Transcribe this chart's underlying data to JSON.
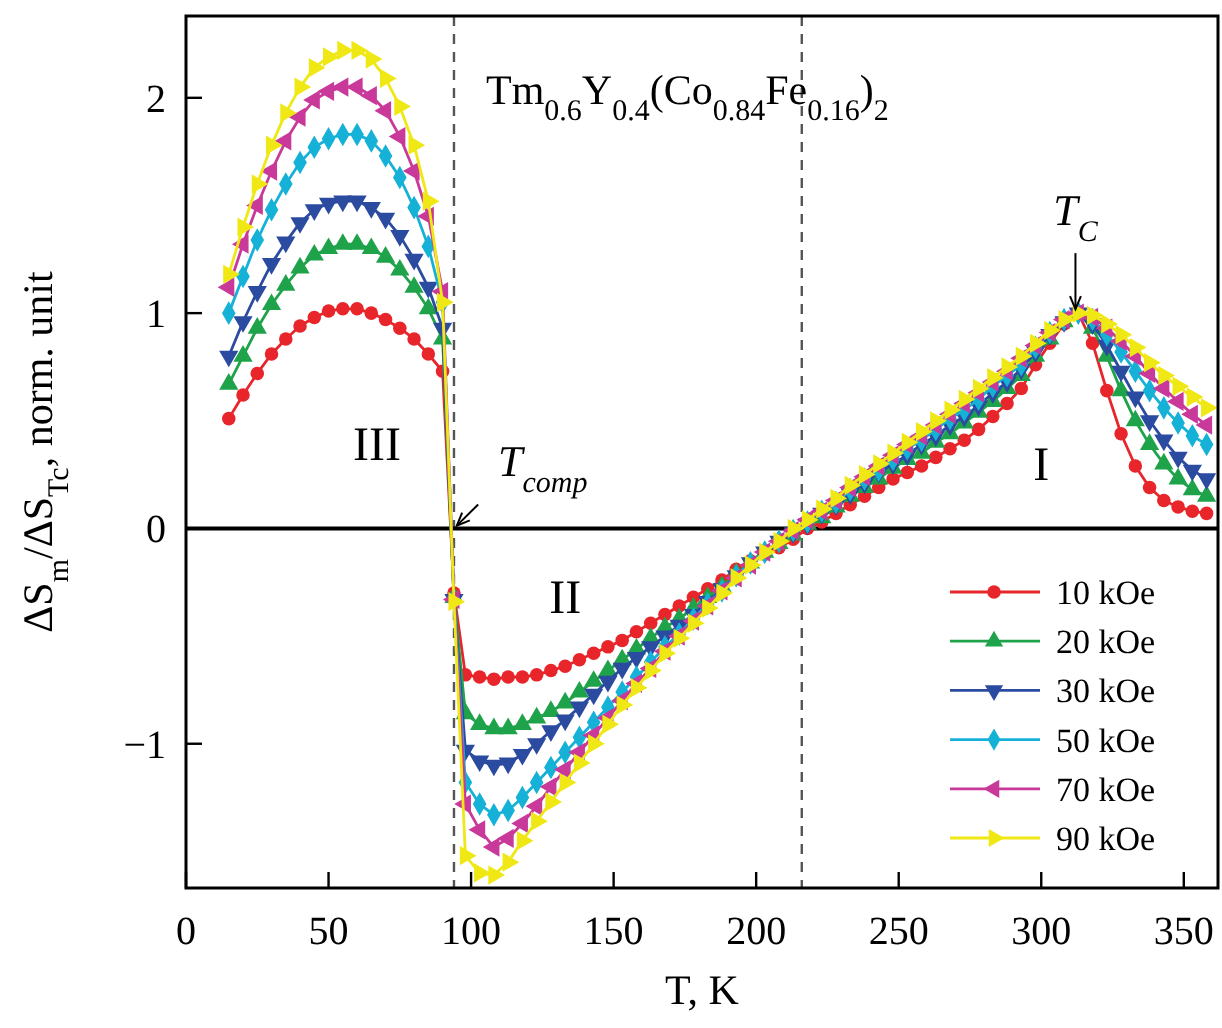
{
  "chart_data": {
    "type": "line",
    "title": "Tm$_{0.6}$Y$_{0.4}$(Co$_{0.84}$Fe$_{0.16}$)$_{2}$",
    "xlabel": "T, K",
    "ylabel": "ΔS$_{m}$/ΔS$_{Tc}$, norm. unit",
    "x": [
      15,
      20,
      25,
      30,
      35,
      40,
      45,
      50,
      55,
      60,
      65,
      70,
      75,
      80,
      85,
      90,
      94,
      98,
      103,
      108,
      113,
      118,
      123,
      128,
      133,
      138,
      143,
      148,
      153,
      158,
      163,
      168,
      173,
      178,
      183,
      188,
      193,
      198,
      203,
      208,
      213,
      218,
      223,
      228,
      233,
      238,
      243,
      248,
      253,
      258,
      263,
      268,
      273,
      278,
      283,
      288,
      293,
      298,
      303,
      308,
      313,
      318,
      323,
      328,
      333,
      338,
      343,
      348,
      353,
      358
    ],
    "xlim": [
      0,
      362
    ],
    "xticks": [
      0,
      50,
      100,
      150,
      200,
      250,
      300,
      350
    ],
    "ylim": [
      -1.67,
      2.38
    ],
    "yticks": [
      -1,
      0,
      1,
      2
    ],
    "series": [
      {
        "name": "10 kOe",
        "color": "#e8252a",
        "marker": "circle",
        "values": [
          0.51,
          0.62,
          0.72,
          0.81,
          0.88,
          0.94,
          0.98,
          1.01,
          1.02,
          1.02,
          1.0,
          0.97,
          0.93,
          0.88,
          0.81,
          0.73,
          -0.3,
          -0.68,
          -0.69,
          -0.7,
          -0.69,
          -0.69,
          -0.68,
          -0.66,
          -0.64,
          -0.61,
          -0.58,
          -0.55,
          -0.52,
          -0.48,
          -0.44,
          -0.4,
          -0.36,
          -0.32,
          -0.28,
          -0.24,
          -0.19,
          -0.15,
          -0.12,
          -0.09,
          -0.05,
          0.0,
          0.03,
          0.07,
          0.11,
          0.15,
          0.19,
          0.23,
          0.26,
          0.29,
          0.33,
          0.37,
          0.41,
          0.46,
          0.52,
          0.58,
          0.65,
          0.76,
          0.86,
          0.95,
          1.0,
          0.86,
          0.64,
          0.44,
          0.29,
          0.19,
          0.13,
          0.1,
          0.08,
          0.07
        ]
      },
      {
        "name": "20 kOe",
        "color": "#1fa34a",
        "marker": "triangle",
        "values": [
          0.67,
          0.8,
          0.93,
          1.04,
          1.13,
          1.21,
          1.27,
          1.3,
          1.32,
          1.32,
          1.3,
          1.26,
          1.2,
          1.12,
          1.02,
          0.88,
          -0.32,
          -0.86,
          -0.91,
          -0.93,
          -0.93,
          -0.91,
          -0.88,
          -0.85,
          -0.81,
          -0.76,
          -0.71,
          -0.66,
          -0.61,
          -0.56,
          -0.51,
          -0.46,
          -0.42,
          -0.37,
          -0.32,
          -0.27,
          -0.21,
          -0.16,
          -0.11,
          -0.07,
          -0.03,
          0.02,
          0.05,
          0.1,
          0.15,
          0.19,
          0.23,
          0.28,
          0.32,
          0.35,
          0.4,
          0.44,
          0.49,
          0.54,
          0.59,
          0.65,
          0.71,
          0.8,
          0.88,
          0.96,
          1.0,
          0.93,
          0.8,
          0.64,
          0.5,
          0.39,
          0.3,
          0.23,
          0.18,
          0.15
        ]
      },
      {
        "name": "30 kOe",
        "color": "#2b4ba0",
        "marker": "triangle",
        "values": [
          0.8,
          0.96,
          1.1,
          1.23,
          1.33,
          1.42,
          1.48,
          1.51,
          1.52,
          1.52,
          1.49,
          1.44,
          1.36,
          1.25,
          1.12,
          0.93,
          -0.33,
          -1.03,
          -1.08,
          -1.1,
          -1.09,
          -1.05,
          -1.0,
          -0.94,
          -0.89,
          -0.83,
          -0.77,
          -0.71,
          -0.65,
          -0.6,
          -0.55,
          -0.5,
          -0.45,
          -0.4,
          -0.34,
          -0.28,
          -0.22,
          -0.16,
          -0.11,
          -0.06,
          -0.02,
          0.02,
          0.07,
          0.11,
          0.16,
          0.21,
          0.26,
          0.3,
          0.34,
          0.39,
          0.43,
          0.48,
          0.52,
          0.57,
          0.63,
          0.68,
          0.74,
          0.82,
          0.9,
          0.96,
          1.0,
          0.95,
          0.85,
          0.73,
          0.61,
          0.5,
          0.41,
          0.33,
          0.27,
          0.23
        ]
      },
      {
        "name": "50 kOe",
        "color": "#16b1d6",
        "marker": "diamond",
        "values": [
          1.0,
          1.17,
          1.34,
          1.48,
          1.6,
          1.7,
          1.77,
          1.81,
          1.83,
          1.83,
          1.8,
          1.73,
          1.63,
          1.49,
          1.31,
          1.05,
          -0.33,
          -1.18,
          -1.28,
          -1.33,
          -1.31,
          -1.25,
          -1.18,
          -1.11,
          -1.04,
          -0.97,
          -0.9,
          -0.83,
          -0.76,
          -0.69,
          -0.62,
          -0.55,
          -0.49,
          -0.42,
          -0.35,
          -0.29,
          -0.22,
          -0.16,
          -0.11,
          -0.06,
          -0.01,
          0.03,
          0.08,
          0.12,
          0.18,
          0.23,
          0.27,
          0.32,
          0.37,
          0.41,
          0.46,
          0.51,
          0.55,
          0.6,
          0.66,
          0.71,
          0.76,
          0.84,
          0.91,
          0.97,
          1.0,
          0.97,
          0.9,
          0.82,
          0.73,
          0.64,
          0.56,
          0.49,
          0.43,
          0.39
        ]
      },
      {
        "name": "70 kOe",
        "color": "#c8399a",
        "marker": "triangle",
        "values": [
          1.12,
          1.32,
          1.5,
          1.66,
          1.8,
          1.91,
          1.99,
          2.03,
          2.05,
          2.05,
          2.01,
          1.94,
          1.82,
          1.66,
          1.45,
          1.1,
          -0.33,
          -1.28,
          -1.4,
          -1.48,
          -1.44,
          -1.37,
          -1.29,
          -1.2,
          -1.12,
          -1.04,
          -0.96,
          -0.88,
          -0.8,
          -0.72,
          -0.65,
          -0.57,
          -0.5,
          -0.43,
          -0.36,
          -0.29,
          -0.23,
          -0.17,
          -0.11,
          -0.06,
          -0.01,
          0.04,
          0.08,
          0.13,
          0.19,
          0.24,
          0.29,
          0.34,
          0.39,
          0.43,
          0.48,
          0.53,
          0.58,
          0.63,
          0.68,
          0.73,
          0.79,
          0.85,
          0.91,
          0.97,
          1.0,
          0.98,
          0.93,
          0.87,
          0.8,
          0.72,
          0.65,
          0.59,
          0.53,
          0.48
        ]
      },
      {
        "name": "90 kOe",
        "color": "#f0e814",
        "marker": "triangle",
        "values": [
          1.18,
          1.4,
          1.6,
          1.78,
          1.93,
          2.05,
          2.14,
          2.19,
          2.22,
          2.22,
          2.18,
          2.09,
          1.96,
          1.78,
          1.52,
          1.05,
          -0.34,
          -1.52,
          -1.6,
          -1.61,
          -1.55,
          -1.45,
          -1.36,
          -1.27,
          -1.18,
          -1.09,
          -1.0,
          -0.91,
          -0.82,
          -0.74,
          -0.66,
          -0.58,
          -0.51,
          -0.44,
          -0.37,
          -0.3,
          -0.23,
          -0.17,
          -0.11,
          -0.06,
          0.0,
          0.04,
          0.09,
          0.14,
          0.2,
          0.25,
          0.3,
          0.35,
          0.4,
          0.45,
          0.5,
          0.55,
          0.6,
          0.65,
          0.7,
          0.75,
          0.8,
          0.86,
          0.92,
          0.97,
          1.0,
          0.99,
          0.95,
          0.9,
          0.84,
          0.77,
          0.71,
          0.66,
          0.61,
          0.56
        ]
      }
    ],
    "ref_lines": [
      {
        "axis": "x",
        "value": 94,
        "line_style": "dashed",
        "color": "#555555"
      },
      {
        "axis": "x",
        "value": 216,
        "line_style": "dashed",
        "color": "#555555"
      },
      {
        "axis": "y",
        "value": 0,
        "line_style": "solid",
        "color": "#000000"
      }
    ],
    "annotations": [
      {
        "text": "T$_{comp}$",
        "x": 94,
        "y": 0
      },
      {
        "text": "T$_{C}$",
        "x": 312,
        "y": 1.0
      },
      "I",
      "II",
      "III"
    ],
    "legend": "bottom right",
    "grid": false
  }
}
